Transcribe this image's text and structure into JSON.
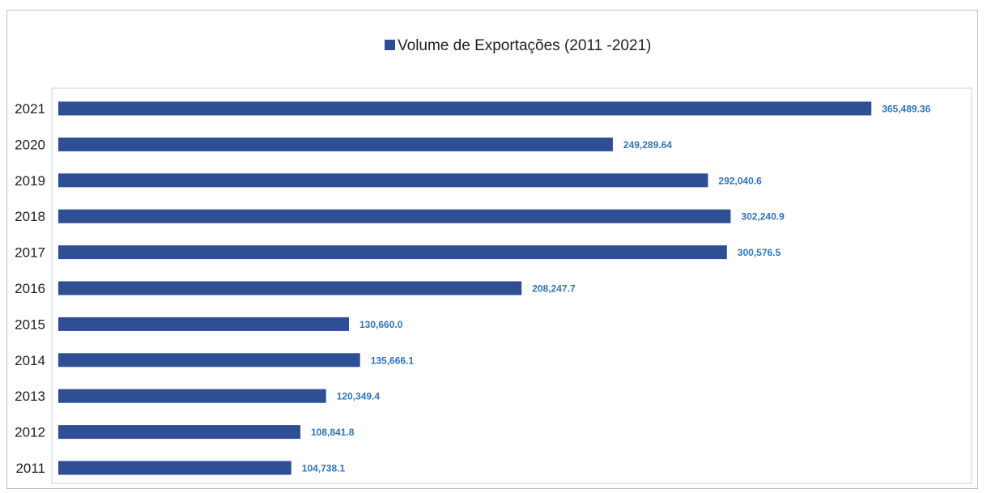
{
  "chart_data": {
    "type": "bar",
    "orientation": "horizontal",
    "categories": [
      "2021",
      "2020",
      "2019",
      "2018",
      "2017",
      "2016",
      "2015",
      "2014",
      "2013",
      "2012",
      "2011"
    ],
    "series": [
      {
        "name": "Volume de Exportações (2011 -2021)",
        "values": [
          365489.36,
          249289.64,
          292040.6,
          302240.9,
          300576.5,
          208247.7,
          130660.0,
          135666.1,
          120349.4,
          108841.8,
          104738.1
        ],
        "labels": [
          "365,489.36",
          "249,289.64",
          "292,040.6",
          "302,240.9",
          "300,576.5",
          "208,247.7",
          "130,660.0",
          "135,666.1",
          "120,349.4",
          "108,841.8",
          "104,738.1"
        ]
      }
    ],
    "xlim": [
      0,
      400000
    ],
    "grid": false,
    "legend_position": "top-center",
    "colors": {
      "bar": "#2f4f95",
      "data_label": "#2e75b6",
      "plot_border": "#c8d0e8",
      "frame_border": "#bfbfbf"
    }
  }
}
